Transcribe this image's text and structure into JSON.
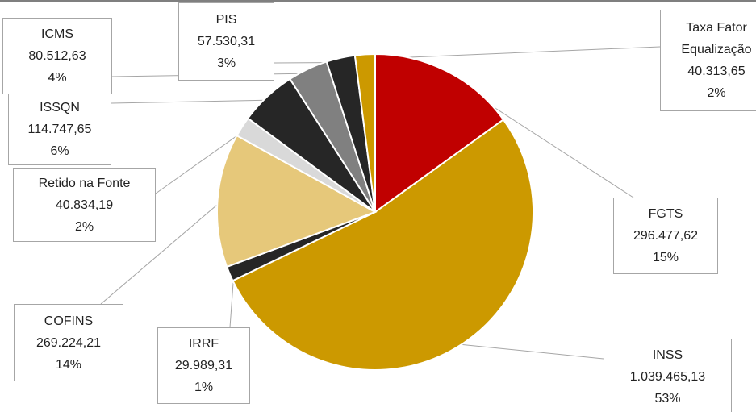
{
  "chart_data": {
    "type": "pie",
    "categories": [
      "FGTS",
      "INSS",
      "IRRF",
      "COFINS",
      "Retido na Fonte",
      "ISSQN",
      "ICMS",
      "PIS",
      "Taxa Fator Equalização"
    ],
    "values": [
      296477.62,
      1039465.13,
      29989.31,
      269224.21,
      40834.19,
      114747.65,
      80512.63,
      57530.31,
      40313.65
    ],
    "value_labels": [
      "296.477,62",
      "1.039.465,13",
      "29.989,31",
      "269.224,21",
      "40.834,19",
      "114.747,65",
      "80.512,63",
      "57.530,31",
      "40.313,65"
    ],
    "percents": [
      15,
      53,
      1,
      14,
      2,
      6,
      4,
      3,
      2
    ],
    "percent_labels": [
      "15%",
      "53%",
      "1%",
      "14%",
      "2%",
      "6%",
      "4%",
      "3%",
      "2%"
    ],
    "colors": [
      "#c00000",
      "#cc9900",
      "#262626",
      "#e6c87a",
      "#d9d9d9",
      "#262626",
      "#808080",
      "#262626",
      "#cc9900"
    ]
  }
}
